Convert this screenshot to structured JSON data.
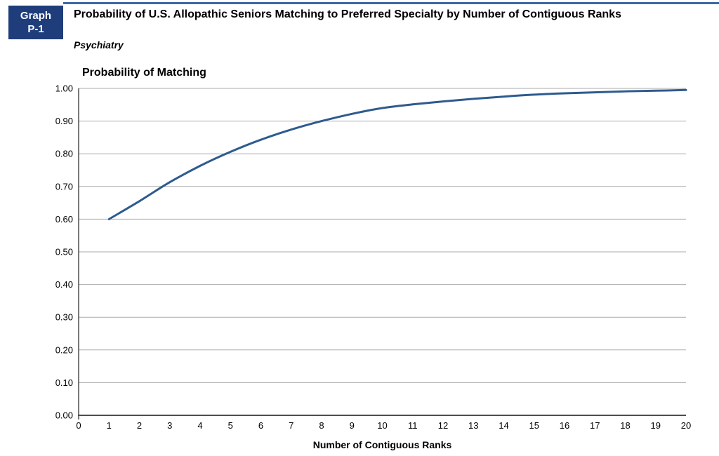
{
  "header": {
    "badge": {
      "line1": "Graph",
      "line2": "P-1"
    },
    "title": "Probability of U.S. Allopathic Seniors Matching to Preferred Specialty by Number of Contiguous Ranks",
    "subtitle": "Psychiatry"
  },
  "colors": {
    "badge_bg": "#1F3D7A",
    "badge_text": "#FFFFFF",
    "top_rule": "#3A67A8",
    "line": "#2E5B8F",
    "grid": "#ABABAB",
    "axis": "#4D4D4D",
    "text": "#000000"
  },
  "chart_data": {
    "type": "line",
    "title": "Probability of Matching",
    "xlabel": "Number of Contiguous Ranks",
    "ylabel": "",
    "xlim": [
      0,
      20
    ],
    "ylim": [
      0.0,
      1.0
    ],
    "grid": true,
    "legend_position": "none",
    "x_ticks": [
      0,
      1,
      2,
      3,
      4,
      5,
      6,
      7,
      8,
      9,
      10,
      11,
      12,
      13,
      14,
      15,
      16,
      17,
      18,
      19,
      20
    ],
    "y_ticks": [
      "0.00",
      "0.10",
      "0.20",
      "0.30",
      "0.40",
      "0.50",
      "0.60",
      "0.70",
      "0.80",
      "0.90",
      "1.00"
    ],
    "series": [
      {
        "name": "Psychiatry",
        "x": [
          1,
          2,
          3,
          4,
          5,
          6,
          7,
          8,
          9,
          10,
          11,
          12,
          13,
          14,
          15,
          16,
          17,
          18,
          19,
          20
        ],
        "y": [
          0.6,
          0.655,
          0.713,
          0.763,
          0.806,
          0.843,
          0.874,
          0.9,
          0.922,
          0.94,
          0.951,
          0.96,
          0.968,
          0.975,
          0.981,
          0.985,
          0.988,
          0.991,
          0.993,
          0.995
        ]
      }
    ]
  }
}
